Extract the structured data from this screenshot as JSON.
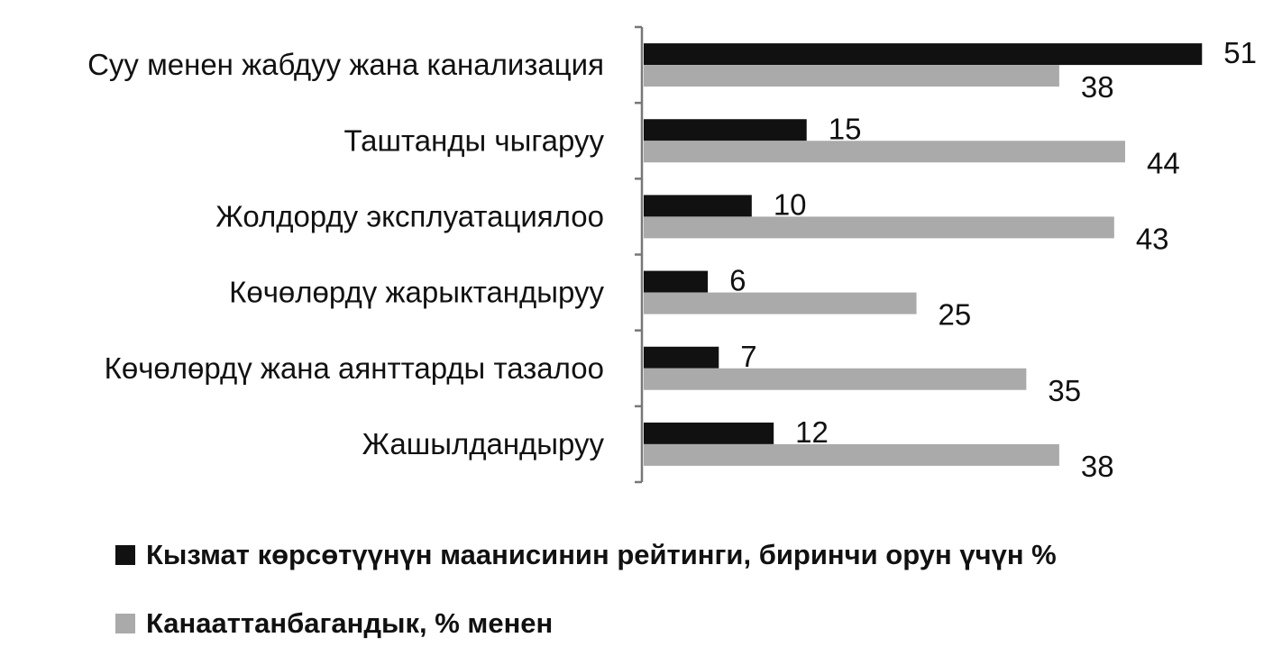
{
  "chart_data": {
    "type": "bar",
    "orientation": "horizontal",
    "categories": [
      "Суу менен жабдуу жана канализация",
      "Таштанды чыгаруу",
      "Жолдорду эксплуатациялоо",
      "Көчөлөрдү жарыктандыруу",
      "Көчөлөрдү жана аянттарды тазалоо",
      "Жашылдандыруу"
    ],
    "series": [
      {
        "name": "Кызмат көрсөтүүнүн маанисинин рейтинги, биринчи орун үчүн %",
        "values": [
          51,
          15,
          10,
          6,
          7,
          12
        ],
        "color": "#111111"
      },
      {
        "name": "Канааттанбагандык, % менен",
        "values": [
          38,
          44,
          43,
          25,
          35,
          38
        ],
        "color": "#aaaaaa"
      }
    ],
    "xlim": [
      0,
      55
    ],
    "data_labels": true,
    "grid": false,
    "legend_position": "bottom-left"
  }
}
